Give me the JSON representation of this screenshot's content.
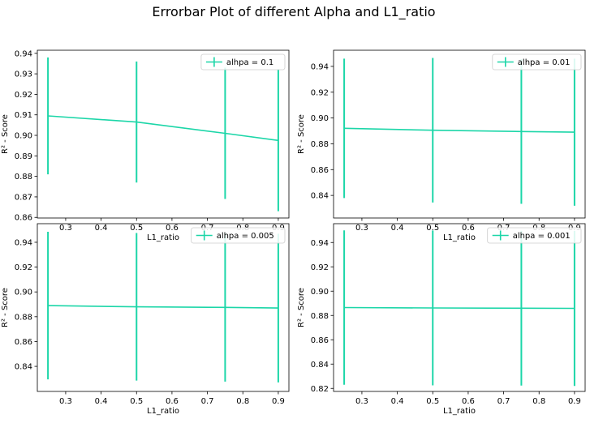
{
  "suptitle": "Errorbar Plot of different Alpha and L1_ratio",
  "colors": {
    "series": "#1cd6a8",
    "axes": "#000000",
    "legend_border": "#cccccc"
  },
  "chart_data": [
    {
      "type": "errorbar",
      "legend": "alhpa = 0.1",
      "legend_position": "upper-right",
      "xlabel": "L1_ratio",
      "ylabel": "R² - Score",
      "xlim": [
        0.22,
        0.93
      ],
      "ylim": [
        0.8597,
        0.9415
      ],
      "xticks": [
        0.3,
        0.4,
        0.5,
        0.6,
        0.7,
        0.8,
        0.9
      ],
      "yticks": [
        0.86,
        0.87,
        0.88,
        0.89,
        0.9,
        0.91,
        0.92,
        0.93,
        0.94
      ],
      "ytick_decimals": 2,
      "x": [
        0.25,
        0.5,
        0.75,
        0.9
      ],
      "y": [
        0.9095,
        0.9065,
        0.901,
        0.8975
      ],
      "yerr": [
        0.0285,
        0.0295,
        0.032,
        0.0345
      ]
    },
    {
      "type": "errorbar",
      "legend": "alhpa = 0.01",
      "legend_position": "upper-right",
      "xlabel": "L1_ratio",
      "ylabel": "R² - Score",
      "xlim": [
        0.22,
        0.93
      ],
      "ylim": [
        0.8225,
        0.9525
      ],
      "xticks": [
        0.3,
        0.4,
        0.5,
        0.6,
        0.7,
        0.8,
        0.9
      ],
      "yticks": [
        0.84,
        0.86,
        0.88,
        0.9,
        0.92,
        0.94
      ],
      "ytick_decimals": 2,
      "x": [
        0.25,
        0.5,
        0.75,
        0.9
      ],
      "y": [
        0.892,
        0.8905,
        0.8895,
        0.889
      ],
      "yerr": [
        0.054,
        0.056,
        0.056,
        0.057
      ]
    },
    {
      "type": "errorbar",
      "legend": "alhpa = 0.005",
      "legend_position": "upper-right",
      "xlabel": "L1_ratio",
      "ylabel": "R² - Score",
      "xlim": [
        0.22,
        0.93
      ],
      "ylim": [
        0.8198,
        0.955
      ],
      "xticks": [
        0.3,
        0.4,
        0.5,
        0.6,
        0.7,
        0.8,
        0.9
      ],
      "yticks": [
        0.84,
        0.86,
        0.88,
        0.9,
        0.92,
        0.94
      ],
      "ytick_decimals": 2,
      "x": [
        0.25,
        0.5,
        0.75,
        0.9
      ],
      "y": [
        0.889,
        0.888,
        0.8875,
        0.887
      ],
      "yerr": [
        0.0595,
        0.0595,
        0.0598,
        0.0599
      ]
    },
    {
      "type": "errorbar",
      "legend": "alhpa = 0.001",
      "legend_position": "upper-right",
      "xlabel": "L1_ratio",
      "ylabel": "R² - Score",
      "xlim": [
        0.22,
        0.93
      ],
      "ylim": [
        0.8175,
        0.9555
      ],
      "xticks": [
        0.3,
        0.4,
        0.5,
        0.6,
        0.7,
        0.8,
        0.9
      ],
      "yticks": [
        0.82,
        0.84,
        0.86,
        0.88,
        0.9,
        0.92,
        0.94
      ],
      "ytick_decimals": 2,
      "x": [
        0.25,
        0.5,
        0.75,
        0.9
      ],
      "y": [
        0.8865,
        0.8862,
        0.886,
        0.8858
      ],
      "yerr": [
        0.0635,
        0.0637,
        0.0637,
        0.0638
      ]
    }
  ]
}
